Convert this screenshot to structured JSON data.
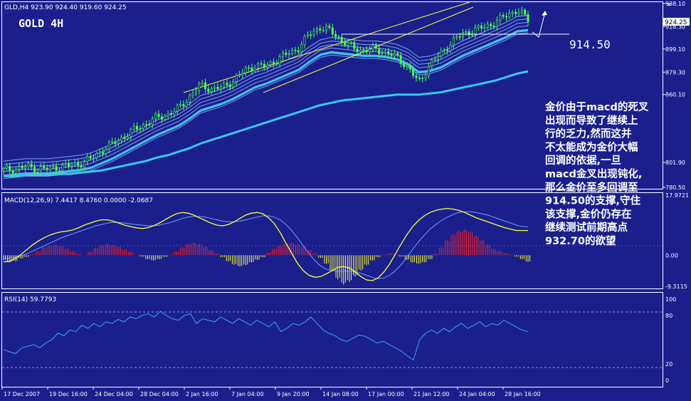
{
  "header": {
    "symbol_line": "GLD,H4  923.90 924.40 919.60 924.25",
    "title": "GOLD 4H",
    "level_label": "914.50",
    "last_price": "924.25"
  },
  "annotation": {
    "lines": [
      "金价由于macd的死叉",
      "出现而导致了继续上",
      "行的乏力,然而这并",
      "不太能成为金价大幅",
      "回调的依据,一旦",
      "macd金叉出现钝化,",
      "那么金价至多回调至",
      "914.50的支撑,守住",
      "该支撑,金价仍存在",
      "继续测试前期高点",
      "932.70的欲望"
    ]
  },
  "colors": {
    "background": "#1a1f8c",
    "candles": "#4dff4d",
    "ma_thick": "#38c8e8",
    "ma_thin": "#8fb8ff",
    "channel": "#ffff33",
    "macd_line": "#ffff33",
    "macd_signal": "#6fa0ff",
    "hist_up": "#ff2020",
    "hist_down": "#ffff33",
    "rsi_line": "#3fa0ff",
    "grid_text": "#ffffff",
    "level_line": "#ffffff"
  },
  "chart_data": [
    {
      "type": "line",
      "title": "GLD,H4 923.90 924.40 919.60 924.25",
      "ylim": [
        780.5,
        938.1
      ],
      "y_ticks": [
        "938.10",
        "918.30",
        "899.10",
        "879.30",
        "860.10",
        "801.90",
        "780.50"
      ],
      "highlighted_price": "924.25",
      "level": "914.50",
      "x_labels": [
        "17 Dec 2007",
        "19 Dec 16:00",
        "24 Dec 04:00",
        "28 Dec 04:00",
        "2 Jan 16:00",
        "7 Jan 04:00",
        "9 Jan 20:00",
        "14 Jan 08:00",
        "17 Jan 00:00",
        "21 Jan 12:00",
        "24 Jan 04:00",
        "28 Jan 16:00"
      ],
      "series": [
        {
          "values": [
            795,
            796,
            798,
            797,
            796,
            798,
            799,
            801,
            805,
            812,
            818,
            824,
            830,
            835,
            840,
            843,
            848,
            858,
            868,
            865,
            866,
            872,
            880,
            885,
            884,
            890,
            895,
            900,
            912,
            918,
            914,
            906,
            900,
            898,
            899,
            896,
            892,
            884,
            870,
            886,
            895,
            905,
            912,
            915,
            918,
            922,
            928,
            932.7,
            924.25
          ]
        },
        {
          "values": [
            794,
            795,
            796,
            796,
            796,
            797,
            798,
            799,
            801,
            805,
            809,
            814,
            819,
            824,
            829,
            833,
            837,
            843,
            850,
            853,
            856,
            860,
            865,
            870,
            873,
            877,
            881,
            885,
            892,
            898,
            900,
            899,
            898,
            897,
            897,
            896,
            894,
            890,
            883,
            884,
            887,
            892,
            897,
            901,
            905,
            909,
            913,
            918,
            919
          ]
        },
        {
          "values": [
            790,
            790,
            791,
            791,
            791,
            792,
            792,
            793,
            794,
            795,
            797,
            799,
            801,
            803,
            806,
            808,
            811,
            814,
            818,
            821,
            824,
            827,
            830,
            833,
            836,
            839,
            842,
            845,
            848,
            851,
            853,
            855,
            856,
            857,
            858,
            859,
            860,
            860,
            860,
            861,
            862,
            864,
            866,
            868,
            870,
            872,
            875,
            878,
            880
          ]
        }
      ]
    },
    {
      "type": "bar",
      "title": "MACD(12,26,9) 7.4417 8.4760 0.0000 -2.0687",
      "ylim": [
        -9.3115,
        17.9721
      ],
      "y_ticks": [
        "17.9721",
        "0.00",
        "-9.3115"
      ],
      "series": [
        {
          "name": "histogram",
          "values": [
            -1.5,
            -2.2,
            -1.8,
            -1.0,
            -0.5,
            0.3,
            1.2,
            2.4,
            3.0,
            3.2,
            2.8,
            2.0,
            1.2,
            0.4,
            0.0,
            1.0,
            2.2,
            3.0,
            3.4,
            3.2,
            2.6,
            1.8,
            1.0,
            0.2,
            -0.4,
            -1.2,
            -1.6,
            -1.2,
            -0.5,
            0.2,
            1.2,
            2.4,
            3.4,
            3.8,
            3.4,
            2.6,
            1.5,
            0.6,
            -0.6,
            -1.8,
            -2.8,
            -3.4,
            -3.0,
            -2.2,
            -1.4,
            -0.6,
            0.8,
            2.0,
            3.0,
            3.6,
            3.8,
            3.4,
            2.6,
            1.6,
            0.6,
            -0.8,
            -2.6,
            -4.8,
            -7.2,
            -8.8,
            -8.0,
            -6.4,
            -4.6,
            -3.0,
            -1.6,
            -0.6,
            0.2,
            0.6,
            0.4,
            -0.4,
            -1.4,
            -2.2,
            -2.6,
            -2.2,
            -1.2,
            0.4,
            2.4,
            4.6,
            6.4,
            7.4,
            7.8,
            7.2,
            6.0,
            4.6,
            3.2,
            2.0,
            1.2,
            0.6,
            0.2,
            -0.4,
            -1.2,
            -2.0
          ]
        },
        {
          "name": "macd",
          "values": [
            -2.0,
            -1.8,
            -1.0,
            0.2,
            1.6,
            3.0,
            4.2,
            5.2,
            6.0,
            6.6,
            7.0,
            7.2,
            7.6,
            8.2,
            9.0,
            9.6,
            10.2,
            10.6,
            10.6,
            10.2,
            9.6,
            9.0,
            8.6,
            8.2,
            8.0,
            8.2,
            8.8,
            9.6,
            10.6,
            11.6,
            12.4,
            12.8,
            12.6,
            12.0,
            11.2,
            10.4,
            9.6,
            9.0,
            8.8,
            9.2,
            10.0,
            11.0,
            12.0,
            12.6,
            12.8,
            12.4,
            11.2,
            9.4,
            6.8,
            3.6,
            0.6,
            -2.4,
            -4.6,
            -6.0,
            -6.6,
            -6.4,
            -5.6,
            -4.6,
            -3.6,
            -3.4,
            -3.8,
            -5.0,
            -6.4,
            -7.4,
            -7.6,
            -6.8,
            -5.0,
            -2.6,
            0.4,
            3.4,
            6.2,
            8.6,
            10.4,
            11.8,
            12.8,
            13.4,
            13.8,
            14.0,
            13.8,
            13.4,
            12.8,
            12.0,
            11.2,
            10.6,
            10.0,
            9.4,
            8.8,
            8.2,
            7.8,
            7.4,
            7.4,
            7.4
          ]
        },
        {
          "name": "signal",
          "values": [
            -1.0,
            -0.8,
            -0.6,
            -0.2,
            0.4,
            1.2,
            2.0,
            2.8,
            3.6,
            4.4,
            5.2,
            5.8,
            6.4,
            7.0,
            7.6,
            8.2,
            8.8,
            9.2,
            9.6,
            9.8,
            9.8,
            9.6,
            9.4,
            9.2,
            9.0,
            8.8,
            8.8,
            9.0,
            9.4,
            9.8,
            10.4,
            11.0,
            11.4,
            11.6,
            11.6,
            11.4,
            11.0,
            10.6,
            10.2,
            10.0,
            10.0,
            10.2,
            10.6,
            11.0,
            11.4,
            11.8,
            11.8,
            11.4,
            10.6,
            9.2,
            7.4,
            5.2,
            2.8,
            0.6,
            -1.6,
            -3.2,
            -4.2,
            -4.6,
            -4.8,
            -4.8,
            -4.8,
            -5.0,
            -5.4,
            -6.0,
            -6.6,
            -7.0,
            -6.8,
            -6.0,
            -4.6,
            -2.8,
            -0.6,
            1.8,
            4.0,
            6.0,
            7.8,
            9.2,
            10.4,
            11.4,
            12.2,
            12.8,
            13.0,
            13.0,
            12.8,
            12.4,
            12.0,
            11.4,
            10.8,
            10.2,
            9.6,
            9.0,
            8.6,
            8.5
          ]
        }
      ]
    },
    {
      "type": "line",
      "title": "RSI(14) 59.7793",
      "ylim": [
        0,
        100
      ],
      "y_ticks": [
        "100",
        "80",
        "20",
        "0"
      ],
      "series": [
        {
          "values": [
            38,
            35,
            33,
            40,
            42,
            44,
            40,
            46,
            50,
            58,
            55,
            62,
            60,
            68,
            64,
            70,
            66,
            72,
            70,
            75,
            72,
            78,
            76,
            80,
            82,
            78,
            85,
            80,
            76,
            74,
            80,
            82,
            70,
            76,
            74,
            72,
            78,
            74,
            70,
            76,
            72,
            68,
            74,
            70,
            66,
            72,
            60,
            64,
            70,
            68,
            72,
            78,
            70,
            62,
            58,
            55,
            50,
            48,
            52,
            56,
            54,
            50,
            46,
            48,
            44,
            40,
            36,
            30,
            25,
            50,
            58,
            62,
            58,
            64,
            60,
            66,
            70,
            64,
            68,
            72,
            66,
            70,
            68,
            74,
            70,
            66,
            62,
            60
          ]
        }
      ]
    }
  ]
}
